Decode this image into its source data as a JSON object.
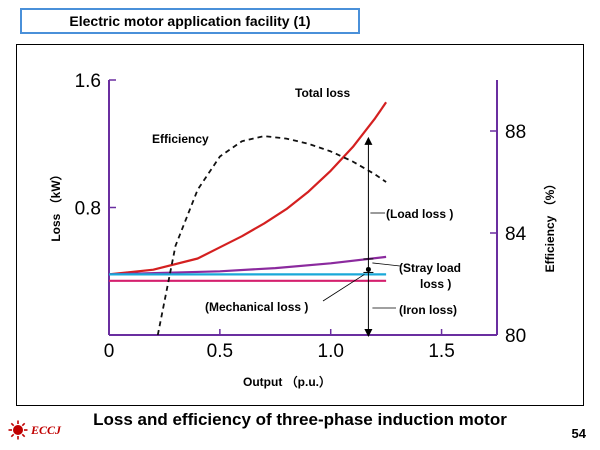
{
  "slide": {
    "title": "Electric motor application facility (1)",
    "caption": "Loss and efficiency of three-phase induction motor",
    "page_number": "54",
    "logo_text": "ECCJ"
  },
  "chart_data": {
    "type": "line",
    "xlabel": "Output （p.u.）",
    "ylabel_left": "Loss （kW）",
    "ylabel_right": "Efficiency （%）",
    "xlim": [
      0,
      1.75
    ],
    "ylim_left": [
      0,
      1.6
    ],
    "ylim_right": [
      80,
      90
    ],
    "x_ticks": [
      0,
      0.5,
      1.0,
      1.5
    ],
    "x_tick_labels": [
      "0",
      "0.5",
      "1.0",
      "1.5"
    ],
    "y_left_ticks": [
      0.8,
      1.6
    ],
    "y_left_tick_labels": [
      "0.8",
      "1.6"
    ],
    "y_right_ticks": [
      80,
      84,
      88
    ],
    "y_right_tick_labels": [
      "80",
      "84",
      "88"
    ],
    "series": [
      {
        "name": "Total loss",
        "axis": "left",
        "style": "solid",
        "color": "#d42020",
        "x": [
          0,
          0.2,
          0.4,
          0.5,
          0.6,
          0.7,
          0.8,
          0.9,
          1.0,
          1.1,
          1.2,
          1.25
        ],
        "y": [
          0.38,
          0.41,
          0.48,
          0.55,
          0.62,
          0.7,
          0.79,
          0.9,
          1.03,
          1.18,
          1.36,
          1.46
        ]
      },
      {
        "name": "Stray load loss",
        "axis": "left",
        "style": "solid",
        "color": "#8b2a9e",
        "x": [
          0,
          0.25,
          0.5,
          0.75,
          1.0,
          1.25
        ],
        "y": [
          0.38,
          0.39,
          0.4,
          0.42,
          0.45,
          0.49
        ]
      },
      {
        "name": "Mechanical loss",
        "axis": "left",
        "style": "solid",
        "color": "#1aa8d8",
        "x": [
          0,
          1.25
        ],
        "y": [
          0.38,
          0.38
        ]
      },
      {
        "name": "Iron loss",
        "axis": "left",
        "style": "solid",
        "color": "#d4206e",
        "x": [
          0,
          1.25
        ],
        "y": [
          0.34,
          0.34
        ]
      },
      {
        "name": "Efficiency",
        "axis": "right",
        "style": "dashed",
        "color": "#111111",
        "x": [
          0.22,
          0.3,
          0.4,
          0.5,
          0.6,
          0.7,
          0.8,
          0.9,
          1.0,
          1.1,
          1.2,
          1.25
        ],
        "y": [
          80,
          83.5,
          85.7,
          87.0,
          87.6,
          87.8,
          87.7,
          87.5,
          87.2,
          86.8,
          86.3,
          86.0
        ]
      }
    ],
    "annotations": [
      {
        "id": "total",
        "text": "Total loss"
      },
      {
        "id": "eff",
        "text": "Efficiency"
      },
      {
        "id": "load",
        "text": "(Load loss )"
      },
      {
        "id": "stray1",
        "text": "(Stray load"
      },
      {
        "id": "stray2",
        "text": "loss )"
      },
      {
        "id": "mech",
        "text": "(Mechanical loss )"
      },
      {
        "id": "iron",
        "text": "(Iron loss)"
      }
    ],
    "marker_x": 1.17
  }
}
